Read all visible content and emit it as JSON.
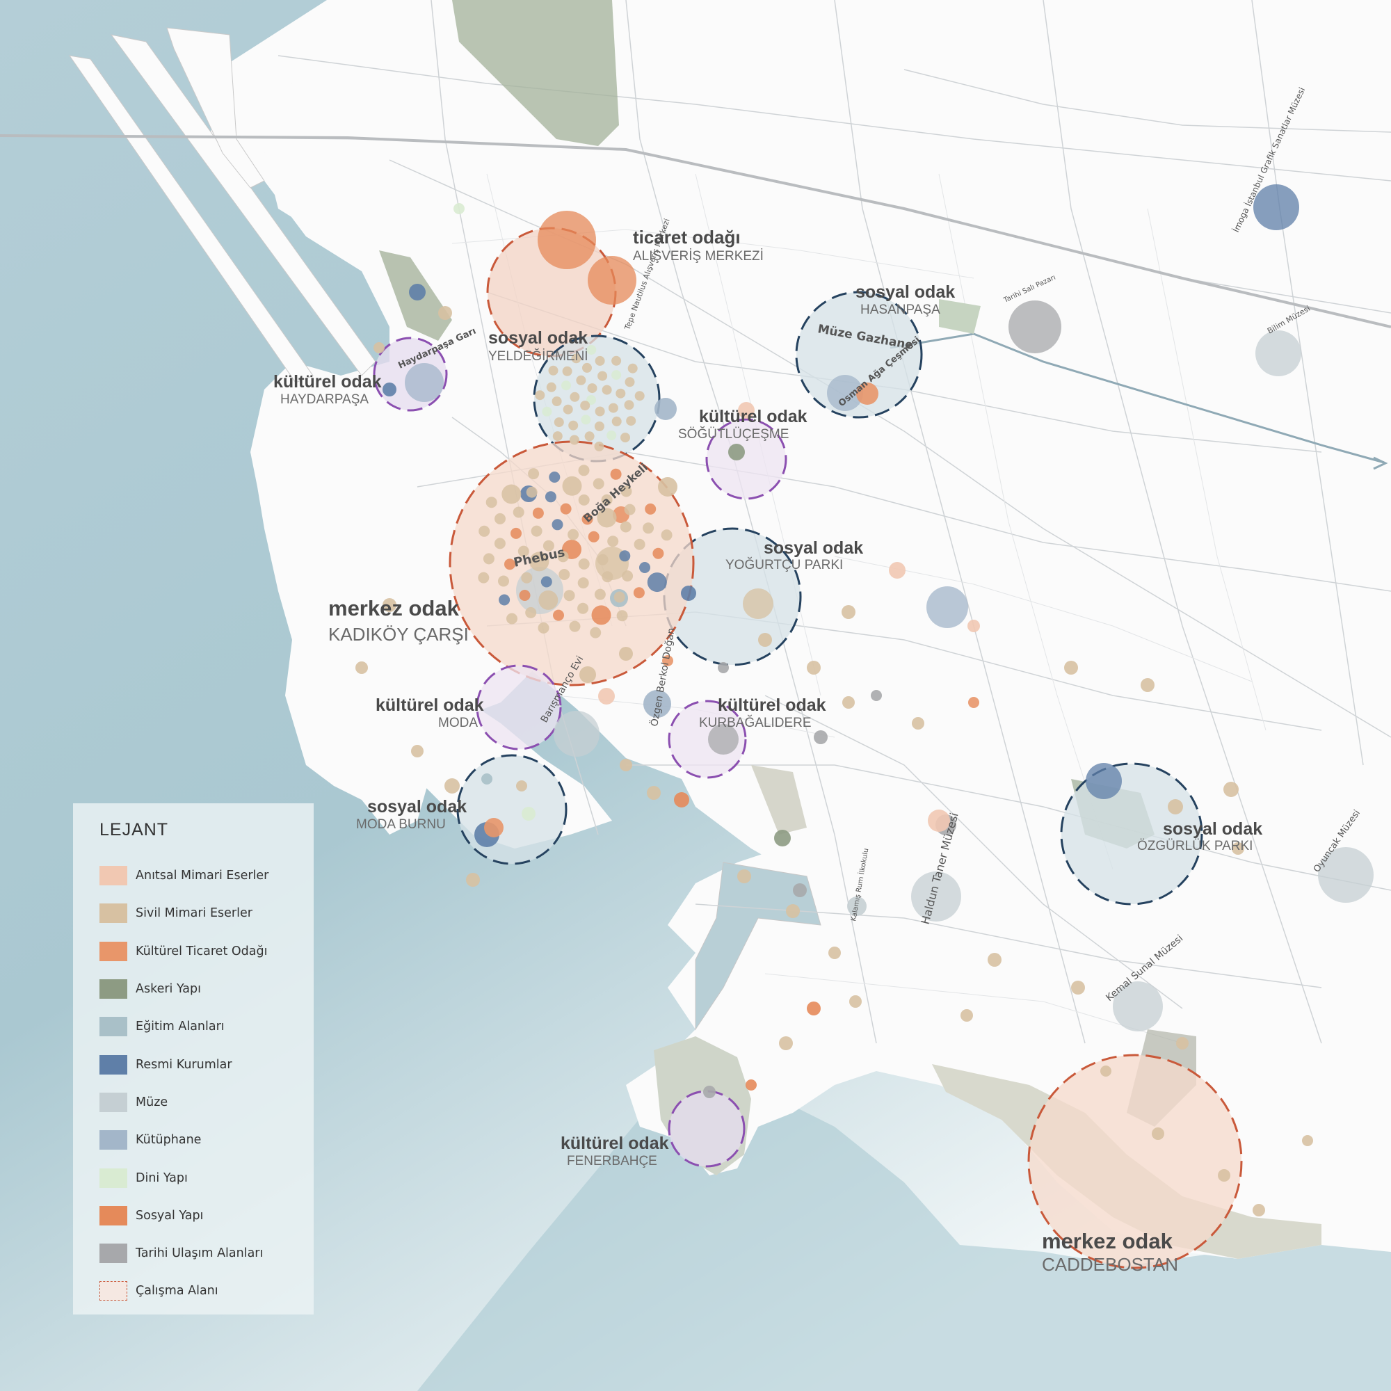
{
  "legend": {
    "title": "LEJANT",
    "items": [
      {
        "label": "Anıtsal Mimari Eserler",
        "color": "#f1c8b2",
        "style": "fill"
      },
      {
        "label": "Sivil Mimari Eserler",
        "color": "#d7c1a2",
        "style": "fill"
      },
      {
        "label": "Kültürel Ticaret Odağı",
        "color": "#e8966a",
        "style": "fill"
      },
      {
        "label": "Askeri Yapı",
        "color": "#8d9b83",
        "style": "fill"
      },
      {
        "label": "Eğitim Alanları",
        "color": "#a9c0c8",
        "style": "fill"
      },
      {
        "label": "Resmi Kurumlar",
        "color": "#5f7fa8",
        "style": "fill"
      },
      {
        "label": "Müze",
        "color": "#c5cfd3",
        "style": "fill"
      },
      {
        "label": "Kütüphane",
        "color": "#a3b6c9",
        "style": "fill"
      },
      {
        "label": "Dini Yapı",
        "color": "#d9ebd2",
        "style": "fill"
      },
      {
        "label": "Sosyal Yapı",
        "color": "#e58a5a",
        "style": "fill"
      },
      {
        "label": "Tarihi Ulaşım Alanları",
        "color": "#a7a8ab",
        "style": "fill"
      },
      {
        "label": "Çalışma Alanı",
        "color": "#c9593a",
        "style": "dashed"
      }
    ]
  },
  "focus_areas": [
    {
      "title": "ticaret odağı",
      "subtitle": "ALIŞVERİŞ MERKEZİ",
      "ring_color": "#c9593a",
      "fill": "#f3d3c4"
    },
    {
      "title": "sosyal odak",
      "subtitle": "YELDEĞİRMENİ",
      "ring_color": "#25425f",
      "fill": "#d5e1e7"
    },
    {
      "title": "kültürel odak",
      "subtitle": "HAYDARPAŞA",
      "ring_color": "#8b4fb0",
      "fill": "#e6dcef"
    },
    {
      "title": "sosyal odak",
      "subtitle": "HASANPAŞA",
      "ring_color": "#25425f",
      "fill": "#d5e1e7"
    },
    {
      "title": "kültürel odak",
      "subtitle": "SÖĞÜTLÜÇEŞME",
      "ring_color": "#8b4fb0",
      "fill": "#ede4f1"
    },
    {
      "title": "sosyal odak",
      "subtitle": "YOĞURTÇU PARKI",
      "ring_color": "#25425f",
      "fill": "#d5e1e7"
    },
    {
      "title": "merkez odak",
      "subtitle": "KADIKÖY ÇARŞI",
      "ring_color": "#c9593a",
      "fill": "#f6d9cb"
    },
    {
      "title": "kültürel odak",
      "subtitle": "MODA",
      "ring_color": "#8b4fb0",
      "fill": "#ede4f1"
    },
    {
      "title": "kültürel odak",
      "subtitle": "KURBAĞALIDERE",
      "ring_color": "#8b4fb0",
      "fill": "#ede4f1"
    },
    {
      "title": "sosyal odak",
      "subtitle": "MODA BURNU",
      "ring_color": "#25425f",
      "fill": "#d5e1e7"
    },
    {
      "title": "sosyal odak",
      "subtitle": "ÖZGÜRLÜK PARKI",
      "ring_color": "#25425f",
      "fill": "#d5e1e7"
    },
    {
      "title": "kültürel odak",
      "subtitle": "FENERBAHÇE",
      "ring_color": "#8b4fb0",
      "fill": "#e6dcef"
    },
    {
      "title": "merkez odak",
      "subtitle": "CADDEBOSTAN",
      "ring_color": "#c9593a",
      "fill": "#f6d9cb"
    }
  ],
  "poi_labels": [
    "Boğa Heykeli",
    "Phebus",
    "Müze Gazhane",
    "Osman Ağa Çeşmesi",
    "Haydarpaşa Garı",
    "Barışmanço Evi",
    "Özgen Berkol Doğan",
    "Haldun Taner Müzesi",
    "Kemal Sunal Müzesi",
    "Oyuncak Müzesi",
    "Bilim Müzesi",
    "Tarihi Salı Pazarı",
    "İmoga İstanbul Grafik Sanatlar Müzesi",
    "Tepe Nautilus Alışveriş Merkezi",
    "Kalamış Rum İlkokulu"
  ]
}
